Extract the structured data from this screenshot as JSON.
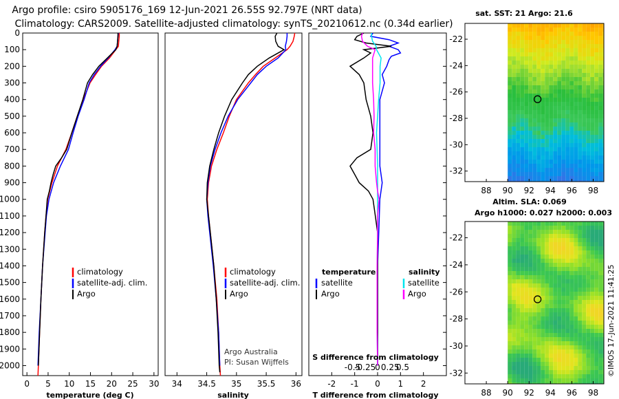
{
  "header": {
    "title_line1": "Argo profile: csiro 5905176_169 12-Jun-2021 26.55S 92.797E (NRT data)",
    "title_line2": "Climatology: CARS2009. Satellite-adjusted climatology: synTS_20210612.nc (0.34d earlier)"
  },
  "colors": {
    "climatology": "#ff0000",
    "satellite": "#0000ff",
    "argo": "#000000",
    "sat_salinity": "#00e5ee",
    "argo_salinity": "#ff00ff"
  },
  "depth_ticks": [
    "0",
    "100",
    "200",
    "300",
    "400",
    "500",
    "600",
    "700",
    "800",
    "900",
    "1000",
    "1100",
    "1200",
    "1300",
    "1400",
    "1500",
    "1600",
    "1700",
    "1800",
    "1900",
    "2000"
  ],
  "chart_data": [
    {
      "type": "line",
      "name": "temperature",
      "xlabel": "temperature (deg C)",
      "xlim": [
        -1,
        31
      ],
      "ylim": [
        0,
        2060
      ],
      "xticks": [
        "0",
        "5",
        "10",
        "15",
        "20",
        "25",
        "30"
      ],
      "xtick_values": [
        0,
        5,
        10,
        15,
        20,
        25,
        30
      ],
      "legend": [
        "climatology",
        "satellite-adj. clim.",
        "Argo"
      ],
      "series": [
        {
          "name": "climatology",
          "depth": [
            0,
            20,
            50,
            80,
            100,
            150,
            200,
            250,
            300,
            400,
            500,
            600,
            700,
            800,
            900,
            1000,
            1100,
            1200,
            1400,
            1600,
            1800,
            2000,
            2060
          ],
          "values": [
            21.8,
            21.8,
            21.7,
            21.6,
            21.0,
            19.5,
            17.6,
            16.2,
            14.9,
            13.3,
            11.9,
            10.6,
            9.2,
            7.2,
            5.9,
            4.9,
            4.5,
            4.2,
            3.7,
            3.3,
            3.0,
            2.7,
            2.6
          ]
        },
        {
          "name": "satellite-adj. clim.",
          "depth": [
            0,
            20,
            50,
            80,
            100,
            150,
            200,
            250,
            300,
            400,
            500,
            600,
            700,
            800,
            900,
            1000,
            1100,
            1200,
            1400,
            1600,
            1800,
            2000
          ],
          "values": [
            21.6,
            21.5,
            21.4,
            21.3,
            20.8,
            19.2,
            17.4,
            15.9,
            14.7,
            13.5,
            12.1,
            10.9,
            9.8,
            7.9,
            6.3,
            5.2,
            4.6,
            4.3,
            3.7,
            3.3,
            2.9,
            2.6
          ]
        },
        {
          "name": "Argo",
          "depth": [
            0,
            20,
            50,
            80,
            100,
            150,
            200,
            250,
            300,
            400,
            500,
            600,
            700,
            750,
            800,
            850,
            900,
            950,
            1000,
            1100,
            1200,
            1400,
            1600,
            1800,
            2000
          ],
          "values": [
            21.5,
            21.5,
            21.4,
            21.3,
            21.0,
            19.0,
            17.0,
            15.5,
            14.3,
            13.2,
            11.9,
            10.6,
            9.4,
            8.2,
            6.8,
            6.2,
            5.7,
            5.3,
            4.8,
            4.5,
            4.2,
            3.7,
            3.3,
            3.0,
            2.7
          ]
        }
      ]
    },
    {
      "type": "line",
      "name": "salinity",
      "xlabel": "salinity",
      "xlim": [
        33.8,
        36.1
      ],
      "ylim": [
        0,
        2060
      ],
      "xticks": [
        "34",
        "34.5",
        "35",
        "35.5",
        "36"
      ],
      "xtick_values": [
        34,
        34.5,
        35,
        35.5,
        36
      ],
      "legend": [
        "climatology",
        "satellite-adj. clim.",
        "Argo"
      ],
      "series": [
        {
          "name": "climatology",
          "depth": [
            0,
            20,
            50,
            80,
            100,
            150,
            200,
            250,
            300,
            400,
            500,
            600,
            700,
            800,
            900,
            1000,
            1100,
            1200,
            1400,
            1600,
            1800,
            2000,
            2060
          ],
          "values": [
            35.98,
            35.97,
            35.95,
            35.9,
            35.85,
            35.65,
            35.45,
            35.32,
            35.2,
            35.0,
            34.88,
            34.78,
            34.67,
            34.58,
            34.53,
            34.51,
            34.53,
            34.56,
            34.62,
            34.67,
            34.7,
            34.72,
            34.73
          ]
        },
        {
          "name": "satellite-adj. clim.",
          "depth": [
            0,
            20,
            50,
            80,
            100,
            150,
            200,
            250,
            300,
            400,
            500,
            600,
            700,
            800,
            900,
            1000,
            1100,
            1200,
            1400,
            1600,
            1800,
            2000
          ],
          "values": [
            35.85,
            35.85,
            35.84,
            35.82,
            35.83,
            35.7,
            35.5,
            35.35,
            35.24,
            35.02,
            34.86,
            34.74,
            34.64,
            34.56,
            34.52,
            34.5,
            34.52,
            34.55,
            34.61,
            34.66,
            34.7,
            34.72
          ]
        },
        {
          "name": "Argo",
          "depth": [
            0,
            20,
            50,
            80,
            100,
            150,
            200,
            250,
            300,
            400,
            500,
            600,
            700,
            800,
            900,
            1000,
            1100,
            1200,
            1400,
            1600,
            1800,
            2000,
            2040
          ],
          "values": [
            35.68,
            35.65,
            35.66,
            35.7,
            35.8,
            35.55,
            35.35,
            35.2,
            35.1,
            34.92,
            34.8,
            34.7,
            34.62,
            34.55,
            34.51,
            34.5,
            34.53,
            34.56,
            34.62,
            34.66,
            34.69,
            34.71,
            34.72
          ]
        }
      ],
      "credits": [
        "Argo Australia",
        "PI: Susan Wijffels"
      ]
    },
    {
      "type": "line",
      "name": "difference",
      "xlabel": "T difference from climatology",
      "xlabel_top": "S difference from climatology",
      "xlim": [
        -3,
        3
      ],
      "ylim": [
        0,
        2060
      ],
      "xticks": [
        "-2",
        "-1",
        "0",
        "1",
        "2"
      ],
      "xtick_values": [
        -2,
        -1,
        0,
        1,
        2
      ],
      "s_ticks": [
        "-0.5",
        "-0.25",
        "0",
        "0.25",
        "0.5"
      ],
      "s_tick_values": [
        -0.5,
        -0.25,
        0,
        0.25,
        0.5
      ],
      "legend_t_title": "temperature",
      "legend_s_title": "salinity",
      "legend_t": [
        "satellite",
        "Argo"
      ],
      "legend_s": [
        "satellite",
        "Argo"
      ],
      "series": [
        {
          "name": "T satellite",
          "depth": [
            0,
            20,
            40,
            60,
            80,
            100,
            120,
            140,
            160,
            200,
            250,
            300,
            400,
            500,
            600,
            700,
            800,
            900,
            1000,
            1200,
            1400,
            1600,
            1800,
            2000
          ],
          "values": [
            -0.2,
            -0.3,
            0.5,
            0.9,
            0.5,
            0.9,
            1.0,
            0.6,
            0.5,
            0.4,
            0.2,
            0.3,
            0.1,
            0.1,
            0.1,
            0.1,
            0.1,
            0.2,
            0.1,
            0.05,
            0.0,
            0.0,
            0.0,
            0.0
          ]
        },
        {
          "name": "T Argo",
          "depth": [
            0,
            20,
            40,
            60,
            80,
            100,
            120,
            150,
            200,
            250,
            300,
            400,
            500,
            600,
            700,
            750,
            800,
            850,
            900,
            950,
            1000,
            1100,
            1200,
            1400,
            1600,
            1800,
            2000
          ],
          "values": [
            -0.6,
            -0.9,
            -1.0,
            -0.5,
            0.6,
            -0.6,
            -0.3,
            -0.6,
            -1.2,
            -0.8,
            -0.6,
            -0.5,
            -0.3,
            -0.2,
            -0.3,
            -0.9,
            -1.2,
            -1.0,
            -0.8,
            -0.4,
            -0.2,
            -0.1,
            0.0,
            0.0,
            0.0,
            0.0,
            0.0
          ]
        },
        {
          "name": "S satellite",
          "depth": [
            0,
            20,
            50,
            80,
            100,
            150,
            200,
            300,
            400,
            500,
            600,
            700,
            800,
            900,
            1000,
            1200,
            1400,
            1600,
            1800,
            2000
          ],
          "values": [
            -0.12,
            -0.12,
            -0.1,
            -0.03,
            -0.02,
            0.07,
            0.05,
            0.05,
            0.02,
            0.0,
            -0.02,
            -0.01,
            0.0,
            0.0,
            0.0,
            0.0,
            -0.01,
            -0.01,
            -0.01,
            0.0
          ]
        },
        {
          "name": "S Argo",
          "depth": [
            0,
            20,
            50,
            80,
            100,
            150,
            200,
            300,
            400,
            500,
            600,
            700,
            800,
            900,
            950,
            1000,
            1100,
            1200,
            1400,
            1600,
            1800,
            2000
          ],
          "values": [
            -0.3,
            -0.32,
            -0.3,
            -0.2,
            -0.05,
            -0.1,
            -0.1,
            -0.1,
            -0.08,
            -0.07,
            -0.08,
            -0.05,
            -0.05,
            -0.02,
            0.0,
            0.03,
            0.0,
            0.0,
            -0.01,
            -0.01,
            -0.01,
            0.0
          ]
        }
      ]
    },
    {
      "type": "heatmap",
      "name": "sst-map",
      "title": "sat. SST: 21 Argo: 21.6",
      "xlim": [
        86,
        99
      ],
      "ylim": [
        -32.8,
        -20.8
      ],
      "xticks": [
        "88",
        "90",
        "92",
        "94",
        "96",
        "98"
      ],
      "xtick_values": [
        88,
        90,
        92,
        94,
        96,
        98
      ],
      "yticks": [
        "-22",
        "-24",
        "-26",
        "-28",
        "-30",
        "-32"
      ],
      "ytick_values": [
        -22,
        -24,
        -26,
        -28,
        -30,
        -32
      ],
      "data_lon": 90,
      "profile": {
        "lon": 92.797,
        "lat": -26.55
      }
    },
    {
      "type": "heatmap",
      "name": "sla-map",
      "title": "Altim. SLA: 0.069",
      "subtitle": "Argo h1000: 0.027 h2000: 0.003",
      "xlim": [
        86,
        99
      ],
      "ylim": [
        -32.8,
        -20.8
      ],
      "xticks": [
        "88",
        "90",
        "92",
        "94",
        "96",
        "98"
      ],
      "xtick_values": [
        88,
        90,
        92,
        94,
        96,
        98
      ],
      "yticks": [
        "-22",
        "-24",
        "-26",
        "-28",
        "-30",
        "-32"
      ],
      "ytick_values": [
        -22,
        -24,
        -26,
        -28,
        -30,
        -32
      ],
      "data_lon": 90,
      "profile": {
        "lon": 92.797,
        "lat": -26.55
      }
    }
  ],
  "footer": {
    "stamp": "©IMOS 17-Jun-2021 11:41:25"
  }
}
